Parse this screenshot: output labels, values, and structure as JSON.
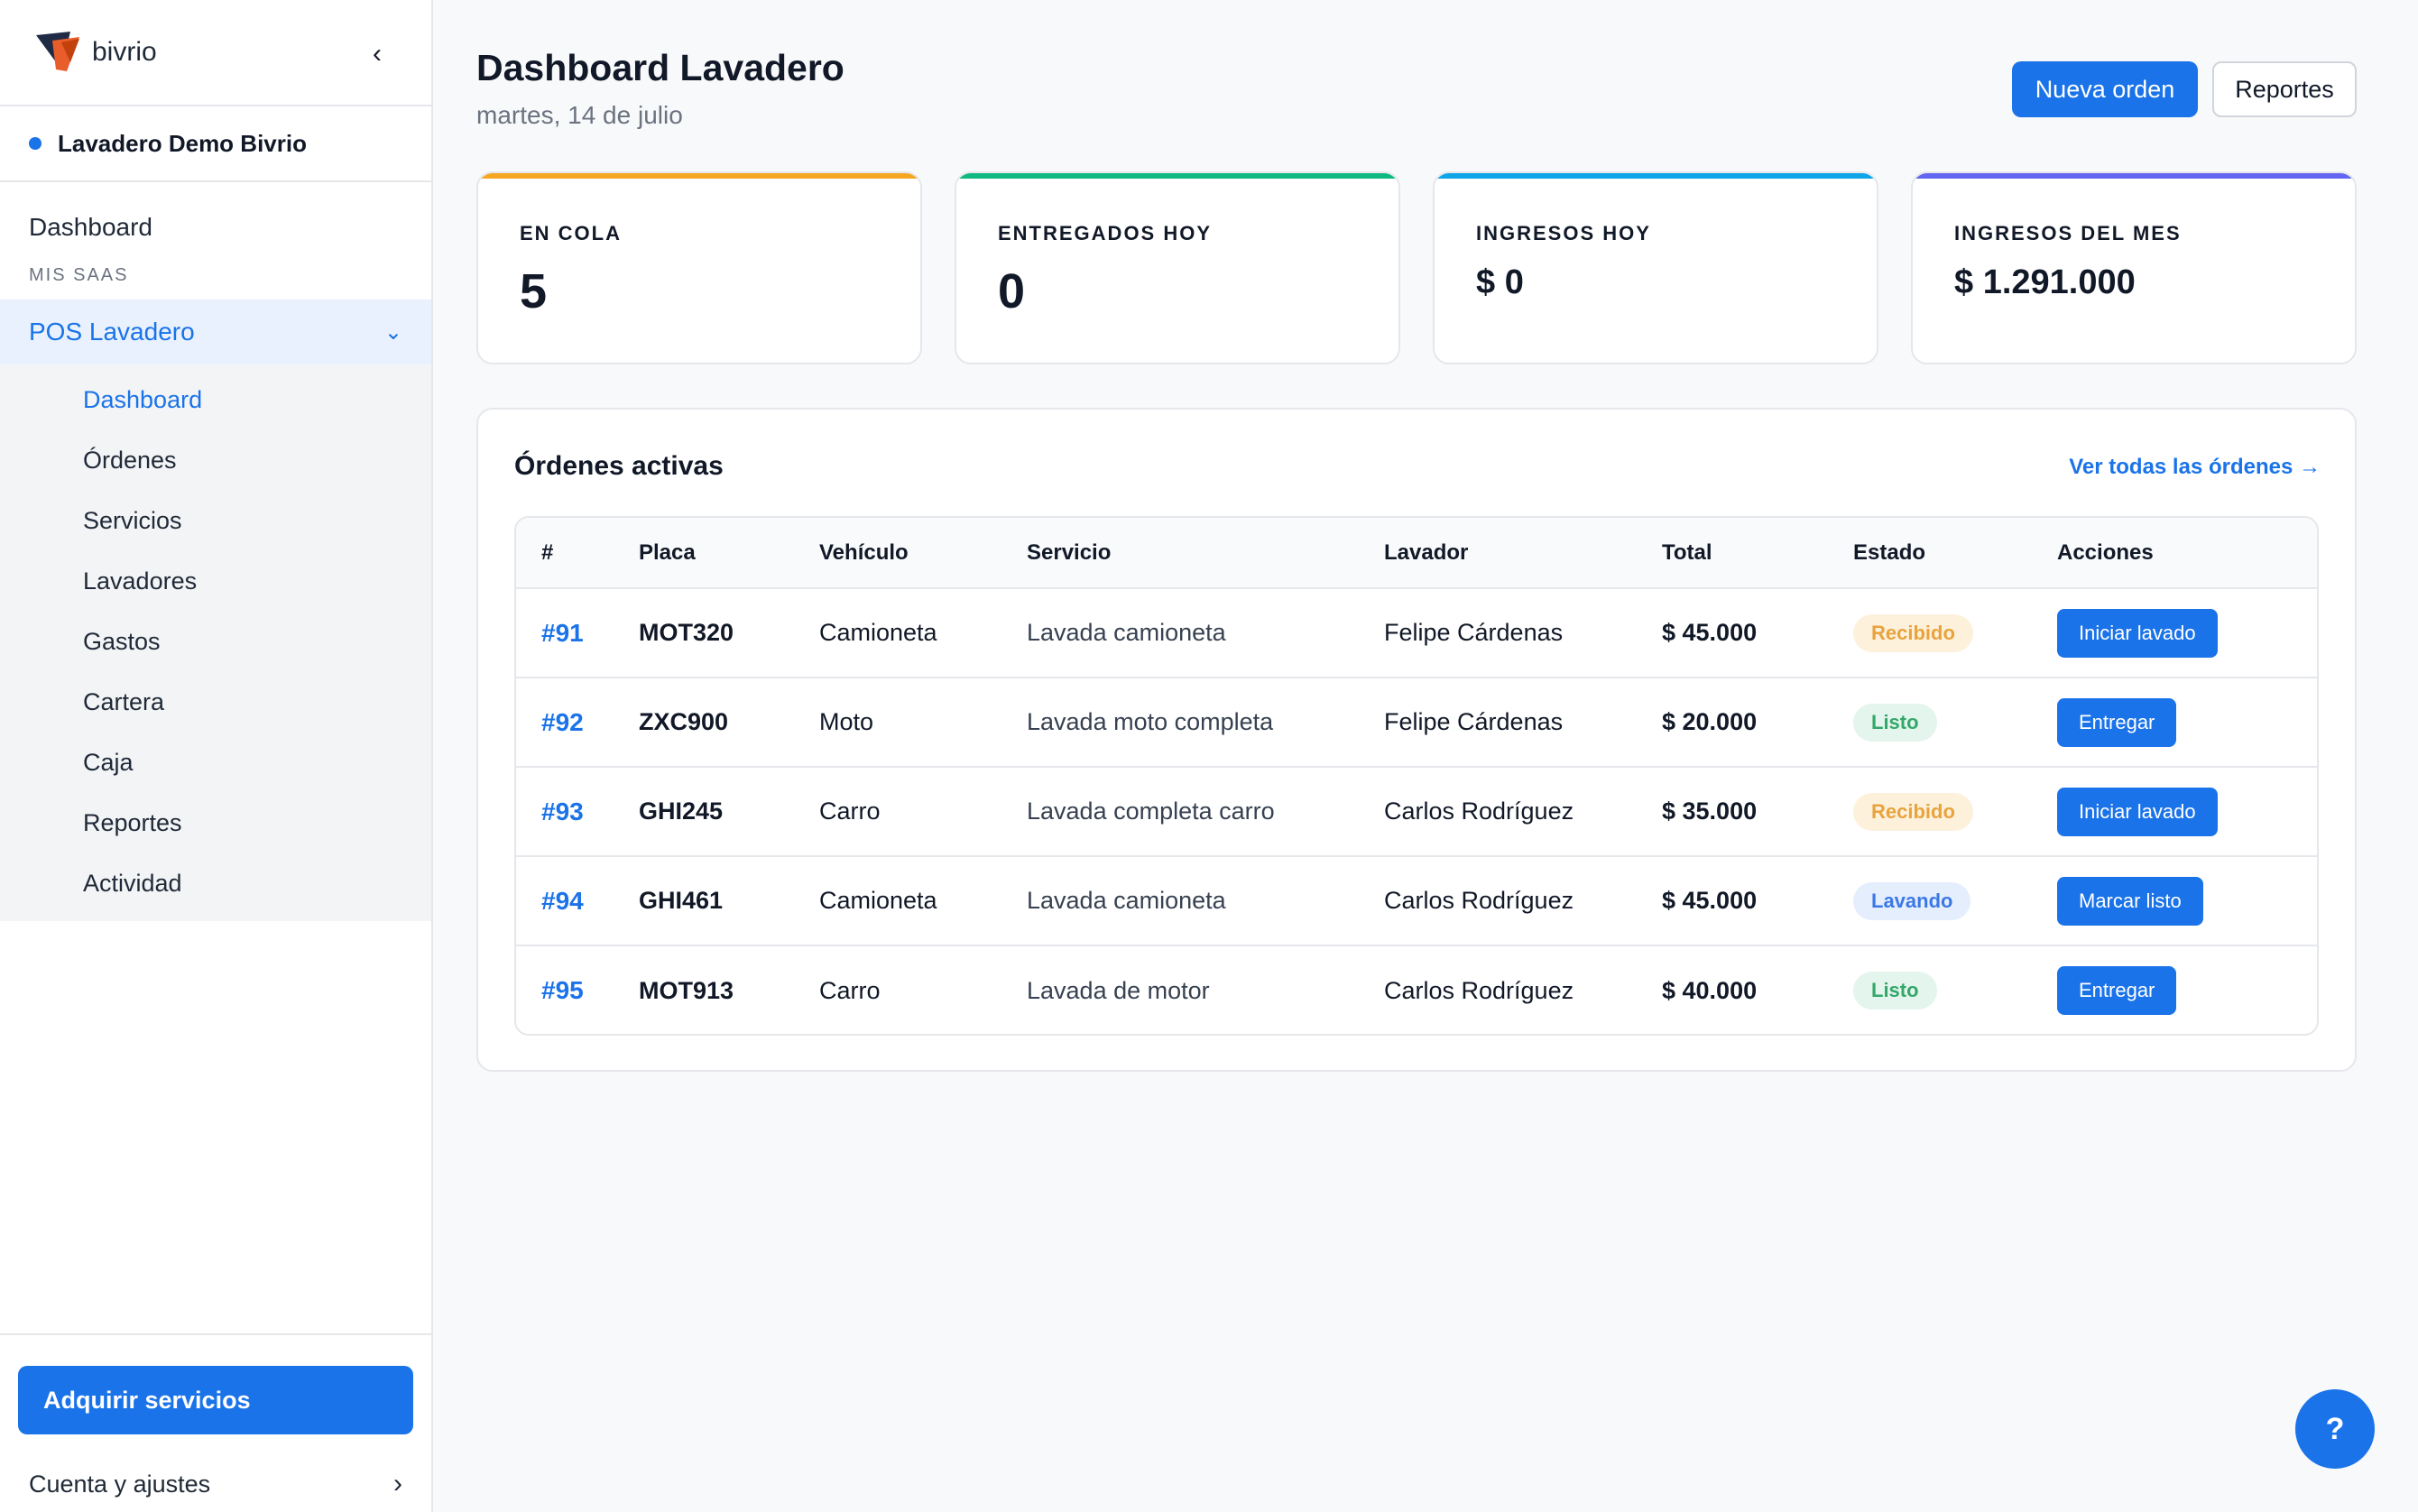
{
  "app": {
    "brand_name": "bivrio",
    "collapse_icon": "chevron-left-icon"
  },
  "sidebar": {
    "org_name": "Lavadero Demo Bivrio",
    "dashboard_label": "Dashboard",
    "section_label": "MIS SAAS",
    "group_label": "POS Lavadero",
    "group_icon": "chevron-down-icon",
    "items": [
      {
        "label": "Dashboard",
        "active": true
      },
      {
        "label": "Órdenes",
        "active": false
      },
      {
        "label": "Servicios",
        "active": false
      },
      {
        "label": "Lavadores",
        "active": false
      },
      {
        "label": "Gastos",
        "active": false
      },
      {
        "label": "Cartera",
        "active": false
      },
      {
        "label": "Caja",
        "active": false
      },
      {
        "label": "Reportes",
        "active": false
      },
      {
        "label": "Actividad",
        "active": false
      }
    ],
    "acquire_label": "Adquirir servicios",
    "account_label": "Cuenta y ajustes",
    "account_icon": "chevron-right-icon"
  },
  "header": {
    "title": "Dashboard Lavadero",
    "date": "martes, 14 de julio",
    "new_order_label": "Nueva orden",
    "reports_label": "Reportes"
  },
  "stats": [
    {
      "label": "EN COLA",
      "value": "5",
      "color": "#f5a623"
    },
    {
      "label": "ENTREGADOS HOY",
      "value": "0",
      "color": "#10b981"
    },
    {
      "label": "INGRESOS HOY",
      "value": "$ 0",
      "color": "#0ea5e9"
    },
    {
      "label": "INGRESOS DEL MES",
      "value": "$ 1.291.000",
      "color": "#6366f1"
    }
  ],
  "orders": {
    "title": "Órdenes activas",
    "link_label": "Ver todas las órdenes →",
    "columns": [
      "#",
      "Placa",
      "Vehículo",
      "Servicio",
      "Lavador",
      "Total",
      "Estado",
      "Acciones"
    ],
    "rows": [
      {
        "num": "#91",
        "placa": "MOT320",
        "vehiculo": "Camioneta",
        "servicio": "Lavada camioneta",
        "lavador": "Felipe Cárdenas",
        "total": "$ 45.000",
        "estado": "Recibido",
        "accion": "Iniciar lavado"
      },
      {
        "num": "#92",
        "placa": "ZXC900",
        "vehiculo": "Moto",
        "servicio": "Lavada moto completa",
        "lavador": "Felipe Cárdenas",
        "total": "$ 20.000",
        "estado": "Listo",
        "accion": "Entregar"
      },
      {
        "num": "#93",
        "placa": "GHI245",
        "vehiculo": "Carro",
        "servicio": "Lavada completa carro",
        "lavador": "Carlos Rodríguez",
        "total": "$ 35.000",
        "estado": "Recibido",
        "accion": "Iniciar lavado"
      },
      {
        "num": "#94",
        "placa": "GHI461",
        "vehiculo": "Camioneta",
        "servicio": "Lavada camioneta",
        "lavador": "Carlos Rodríguez",
        "total": "$ 45.000",
        "estado": "Lavando",
        "accion": "Marcar listo"
      },
      {
        "num": "#95",
        "placa": "MOT913",
        "vehiculo": "Carro",
        "servicio": "Lavada de motor",
        "lavador": "Carlos Rodríguez",
        "total": "$ 40.000",
        "estado": "Listo",
        "accion": "Entregar"
      }
    ]
  },
  "status_colors": {
    "Recibido": {
      "bg": "#fdf1dc",
      "fg": "#e8a33d"
    },
    "Listo": {
      "bg": "#e3f5ec",
      "fg": "#34a86b"
    },
    "Lavando": {
      "bg": "#e5eefc",
      "fg": "#3b78e7"
    }
  },
  "help": {
    "label": "?"
  },
  "colors": {
    "accent": "#1a73e8"
  }
}
